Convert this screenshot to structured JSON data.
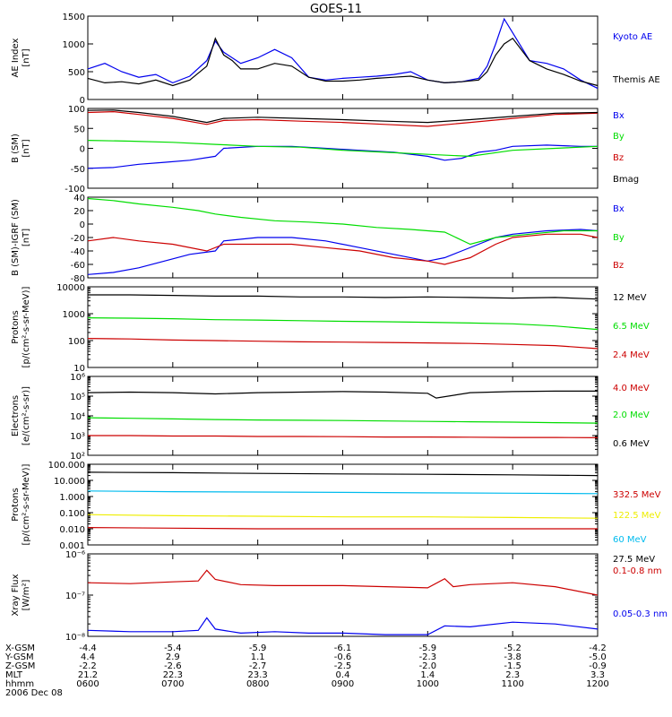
{
  "title": "GOES-11",
  "colors": {
    "black": "#000000",
    "blue": "#0000ee",
    "red": "#cc0000",
    "green": "#00dd00",
    "cyan": "#00bbee",
    "yellow": "#eeee00"
  },
  "chart_data": [
    {
      "type": "line",
      "ylabel": [
        "AE Index",
        "[nT]"
      ],
      "ylim": [
        0,
        1500
      ],
      "yscale": "linear",
      "ytick_labels": [
        "0",
        "500",
        "1000",
        "1500"
      ],
      "ytick_values": [
        0,
        500,
        1000,
        1500
      ],
      "series": [
        {
          "name": "Kyoto AE",
          "color": "blue",
          "x": [
            6.0,
            6.2,
            6.4,
            6.6,
            6.8,
            7.0,
            7.2,
            7.4,
            7.5,
            7.6,
            7.7,
            7.8,
            8.0,
            8.2,
            8.4,
            8.6,
            8.8,
            9.0,
            9.2,
            9.4,
            9.6,
            9.8,
            10.0,
            10.2,
            10.4,
            10.6,
            10.7,
            10.8,
            10.9,
            11.0,
            11.2,
            11.4,
            11.6,
            11.8,
            12.0
          ],
          "y": [
            550,
            650,
            500,
            400,
            450,
            300,
            420,
            700,
            1050,
            850,
            750,
            650,
            750,
            900,
            750,
            400,
            350,
            380,
            400,
            420,
            450,
            500,
            350,
            300,
            320,
            380,
            600,
            1000,
            1450,
            1200,
            700,
            650,
            550,
            350,
            200
          ]
        },
        {
          "name": "Themis AE",
          "color": "black",
          "x": [
            6.0,
            6.2,
            6.4,
            6.6,
            6.8,
            7.0,
            7.2,
            7.4,
            7.5,
            7.6,
            7.7,
            7.8,
            8.0,
            8.2,
            8.4,
            8.6,
            8.8,
            9.0,
            9.2,
            9.4,
            9.6,
            9.8,
            10.0,
            10.2,
            10.4,
            10.6,
            10.7,
            10.8,
            10.9,
            11.0,
            11.2,
            11.4,
            11.6,
            11.8,
            12.0
          ],
          "y": [
            380,
            300,
            320,
            280,
            350,
            250,
            350,
            600,
            1100,
            800,
            700,
            550,
            550,
            650,
            600,
            400,
            330,
            330,
            350,
            380,
            400,
            420,
            350,
            300,
            320,
            350,
            500,
            800,
            1000,
            1100,
            700,
            550,
            450,
            330,
            250
          ]
        }
      ]
    },
    {
      "type": "line",
      "ylabel": [
        "B (SM)",
        "[nT]"
      ],
      "ylim": [
        -100,
        100
      ],
      "yscale": "linear",
      "ytick_labels": [
        "-100",
        "-50",
        "0",
        "50",
        "100"
      ],
      "ytick_values": [
        -100,
        -50,
        0,
        50,
        100
      ],
      "series": [
        {
          "name": "Bx",
          "color": "blue",
          "x": [
            6.0,
            6.3,
            6.6,
            6.9,
            7.2,
            7.5,
            7.6,
            8.0,
            8.4,
            8.8,
            9.2,
            9.6,
            10.0,
            10.2,
            10.4,
            10.6,
            10.8,
            11.0,
            11.4,
            11.8,
            12.0
          ],
          "y": [
            -50,
            -48,
            -40,
            -35,
            -30,
            -20,
            0,
            5,
            5,
            0,
            -5,
            -10,
            -20,
            -30,
            -25,
            -10,
            -5,
            5,
            8,
            5,
            5
          ]
        },
        {
          "name": "By",
          "color": "green",
          "x": [
            6.0,
            6.5,
            7.0,
            7.5,
            8.0,
            8.5,
            9.0,
            9.5,
            10.0,
            10.5,
            11.0,
            11.5,
            12.0
          ],
          "y": [
            20,
            18,
            15,
            10,
            5,
            3,
            -5,
            -10,
            -15,
            -20,
            -5,
            0,
            5
          ]
        },
        {
          "name": "Bz",
          "color": "red",
          "x": [
            6.0,
            6.3,
            6.6,
            7.0,
            7.4,
            7.6,
            8.0,
            8.5,
            9.0,
            9.5,
            10.0,
            10.5,
            11.0,
            11.5,
            12.0
          ],
          "y": [
            90,
            92,
            85,
            75,
            60,
            70,
            72,
            68,
            65,
            60,
            55,
            65,
            75,
            85,
            88
          ]
        },
        {
          "name": "Bmag",
          "color": "black",
          "x": [
            6.0,
            6.3,
            6.6,
            7.0,
            7.4,
            7.6,
            8.0,
            8.5,
            9.0,
            9.5,
            10.0,
            10.5,
            11.0,
            11.5,
            12.0
          ],
          "y": [
            95,
            96,
            90,
            80,
            65,
            75,
            78,
            75,
            72,
            68,
            65,
            72,
            80,
            88,
            90
          ]
        }
      ]
    },
    {
      "type": "line",
      "ylabel": [
        "B (SM)-IGRF (SM)",
        "[nT]"
      ],
      "ylim": [
        -80,
        40
      ],
      "yscale": "linear",
      "ytick_labels": [
        "-80",
        "-60",
        "-40",
        "-20",
        "0",
        "20",
        "40"
      ],
      "ytick_values": [
        -80,
        -60,
        -40,
        -20,
        0,
        20,
        40
      ],
      "series": [
        {
          "name": "Bx",
          "color": "blue",
          "x": [
            6.0,
            6.3,
            6.6,
            6.9,
            7.2,
            7.5,
            7.6,
            8.0,
            8.4,
            8.8,
            9.2,
            9.6,
            10.0,
            10.2,
            10.4,
            10.6,
            10.8,
            11.0,
            11.4,
            11.8,
            12.0
          ],
          "y": [
            -75,
            -72,
            -65,
            -55,
            -45,
            -40,
            -25,
            -20,
            -20,
            -25,
            -35,
            -45,
            -55,
            -50,
            -40,
            -30,
            -20,
            -15,
            -10,
            -8,
            -10
          ]
        },
        {
          "name": "By",
          "color": "green",
          "x": [
            6.0,
            6.3,
            6.6,
            7.0,
            7.3,
            7.5,
            7.8,
            8.2,
            8.6,
            9.0,
            9.4,
            9.8,
            10.2,
            10.5,
            10.8,
            11.2,
            11.6,
            12.0
          ],
          "y": [
            38,
            35,
            30,
            25,
            20,
            15,
            10,
            5,
            3,
            0,
            -5,
            -8,
            -12,
            -30,
            -20,
            -15,
            -10,
            -10
          ]
        },
        {
          "name": "Bz",
          "color": "red",
          "x": [
            6.0,
            6.3,
            6.6,
            7.0,
            7.4,
            7.6,
            8.0,
            8.4,
            8.8,
            9.2,
            9.6,
            10.0,
            10.2,
            10.5,
            10.8,
            11.0,
            11.4,
            11.8,
            12.0
          ],
          "y": [
            -25,
            -20,
            -25,
            -30,
            -40,
            -30,
            -30,
            -30,
            -35,
            -40,
            -50,
            -55,
            -60,
            -50,
            -30,
            -20,
            -15,
            -15,
            -20
          ]
        }
      ]
    },
    {
      "type": "line",
      "ylabel": [
        "Protons",
        "[p/(cm²-s-sr-MeV)]"
      ],
      "ylim": [
        10,
        10000
      ],
      "yscale": "log",
      "ytick_labels": [
        "10",
        "100",
        "1000",
        "10000"
      ],
      "ytick_values": [
        10,
        100,
        1000,
        10000
      ],
      "series": [
        {
          "name": "12 MeV",
          "color": "black",
          "x": [
            6.0,
            6.5,
            7.0,
            7.5,
            8.0,
            8.5,
            9.0,
            9.5,
            10.0,
            10.5,
            11.0,
            11.5,
            12.0
          ],
          "y": [
            5000,
            5000,
            4800,
            4500,
            4500,
            4200,
            4200,
            4000,
            4200,
            4000,
            3800,
            4000,
            3500
          ]
        },
        {
          "name": "6.5 MeV",
          "color": "green",
          "x": [
            6.0,
            6.5,
            7.0,
            7.5,
            8.0,
            8.5,
            9.0,
            9.5,
            10.0,
            10.5,
            11.0,
            11.5,
            12.0
          ],
          "y": [
            700,
            680,
            650,
            600,
            580,
            550,
            520,
            500,
            480,
            450,
            420,
            350,
            260
          ]
        },
        {
          "name": "2.4 MeV",
          "color": "red",
          "x": [
            6.0,
            6.5,
            7.0,
            7.5,
            8.0,
            8.5,
            9.0,
            9.5,
            10.0,
            10.5,
            11.0,
            11.5,
            12.0
          ],
          "y": [
            120,
            115,
            105,
            100,
            95,
            90,
            88,
            85,
            82,
            78,
            72,
            65,
            50
          ]
        }
      ]
    },
    {
      "type": "line",
      "ylabel": [
        "Electrons",
        "[e/(cm²-s-sr)]"
      ],
      "ylim": [
        100,
        1000000
      ],
      "yscale": "log",
      "ytick_labels": [
        "10²",
        "10³",
        "10⁴",
        "10⁵",
        "10⁶"
      ],
      "ytick_values": [
        100,
        1000,
        10000,
        100000,
        1000000
      ],
      "series": [
        {
          "name": "4.0 MeV",
          "color": "red",
          "x": [
            6.0,
            6.5,
            7.0,
            7.5,
            8.0,
            8.5,
            9.0,
            9.5,
            10.0,
            10.5,
            11.0,
            11.5,
            12.0
          ],
          "y": [
            1000,
            1000,
            950,
            950,
            900,
            900,
            880,
            850,
            850,
            830,
            800,
            800,
            780
          ]
        },
        {
          "name": "2.0 MeV",
          "color": "green",
          "x": [
            6.0,
            6.5,
            7.0,
            7.5,
            8.0,
            8.5,
            9.0,
            9.5,
            10.0,
            10.5,
            11.0,
            11.5,
            12.0
          ],
          "y": [
            8000,
            7500,
            7000,
            6500,
            6200,
            6000,
            5800,
            5500,
            5200,
            5000,
            4800,
            4500,
            4300
          ]
        },
        {
          "name": "0.6 MeV",
          "color": "black",
          "x": [
            6.0,
            6.5,
            7.0,
            7.5,
            8.0,
            8.5,
            9.0,
            9.5,
            10.0,
            10.1,
            10.5,
            11.0,
            11.5,
            12.0
          ],
          "y": [
            150000,
            160000,
            150000,
            130000,
            150000,
            160000,
            170000,
            160000,
            140000,
            80000,
            150000,
            170000,
            180000,
            180000
          ]
        }
      ]
    },
    {
      "type": "line",
      "ylabel": [
        "Protons",
        "[p/(cm²-s-sr-MeV)]"
      ],
      "ylim": [
        0.001,
        100
      ],
      "yscale": "log",
      "ytick_labels": [
        "0.001",
        "0.010",
        "0.100",
        "1.000",
        "10.000",
        "100.000"
      ],
      "ytick_values": [
        0.001,
        0.01,
        0.1,
        1,
        10,
        100
      ],
      "series": [
        {
          "name": "332.5 MeV",
          "color": "red",
          "x": [
            6.0,
            7.0,
            8.0,
            9.0,
            10.0,
            11.0,
            12.0
          ],
          "y": [
            0.012,
            0.011,
            0.01,
            0.01,
            0.01,
            0.01,
            0.01
          ]
        },
        {
          "name": "122.5 MeV",
          "color": "yellow",
          "x": [
            6.0,
            7.0,
            8.0,
            9.0,
            10.0,
            11.0,
            12.0
          ],
          "y": [
            0.075,
            0.065,
            0.06,
            0.055,
            0.055,
            0.05,
            0.045
          ]
        },
        {
          "name": "60 MeV",
          "color": "cyan",
          "x": [
            6.0,
            7.0,
            8.0,
            9.0,
            10.0,
            11.0,
            12.0
          ],
          "y": [
            2.2,
            2.0,
            1.9,
            1.8,
            1.7,
            1.6,
            1.5
          ]
        },
        {
          "name": "27.5 MeV",
          "color": "black",
          "x": [
            6.0,
            7.0,
            8.0,
            9.0,
            10.0,
            11.0,
            12.0
          ],
          "y": [
            32,
            30,
            27,
            25,
            24,
            22,
            20
          ]
        }
      ]
    },
    {
      "type": "line",
      "ylabel": [
        "Xray Flux",
        "[W/m²]"
      ],
      "ylim": [
        1e-08,
        1e-06
      ],
      "yscale": "log",
      "ytick_labels": [
        "10⁻⁸",
        "10⁻⁷",
        "10⁻⁶"
      ],
      "ytick_values": [
        1e-08,
        1e-07,
        1e-06
      ],
      "series": [
        {
          "name": "0.1-0.8 nm",
          "color": "red",
          "x": [
            6.0,
            6.5,
            7.0,
            7.3,
            7.4,
            7.5,
            7.8,
            8.2,
            8.6,
            9.0,
            9.5,
            10.0,
            10.2,
            10.3,
            10.5,
            11.0,
            11.5,
            12.0
          ],
          "y": [
            2e-07,
            1.9e-07,
            2.1e-07,
            2.2e-07,
            4e-07,
            2.4e-07,
            1.8e-07,
            1.7e-07,
            1.7e-07,
            1.7e-07,
            1.6e-07,
            1.5e-07,
            2.5e-07,
            1.6e-07,
            1.8e-07,
            2e-07,
            1.6e-07,
            1e-07
          ]
        },
        {
          "name": "0.05-0.3 nm",
          "color": "blue",
          "x": [
            6.0,
            6.5,
            7.0,
            7.3,
            7.4,
            7.5,
            7.8,
            8.2,
            8.6,
            9.0,
            9.5,
            10.0,
            10.2,
            10.5,
            11.0,
            11.5,
            12.0
          ],
          "y": [
            1.4e-08,
            1.3e-08,
            1.3e-08,
            1.4e-08,
            2.8e-08,
            1.5e-08,
            1.2e-08,
            1.3e-08,
            1.2e-08,
            1.2e-08,
            1.1e-08,
            1.1e-08,
            1.8e-08,
            1.7e-08,
            2.2e-08,
            2e-08,
            1.5e-08
          ]
        }
      ]
    }
  ],
  "ephemeris": {
    "row_labels": [
      "X-GSM",
      "Y-GSM",
      "Z-GSM",
      "MLT",
      "hhmm"
    ],
    "columns": [
      [
        "-4.4",
        "4.4",
        "-2.2",
        "21.2",
        "0600"
      ],
      [
        "-5.4",
        "2.9",
        "-2.6",
        "22.3",
        "0700"
      ],
      [
        "-5.9",
        "1.1",
        "-2.7",
        "23.3",
        "0800"
      ],
      [
        "-6.1",
        "-0.6",
        "-2.5",
        "0.4",
        "0900"
      ],
      [
        "-5.9",
        "-2.3",
        "-2.0",
        "1.4",
        "1000"
      ],
      [
        "-5.2",
        "-3.8",
        "-1.5",
        "2.3",
        "1100"
      ],
      [
        "-4.2",
        "-5.0",
        "-0.9",
        "3.3",
        "1200"
      ]
    ],
    "date": "2006 Dec 08"
  }
}
